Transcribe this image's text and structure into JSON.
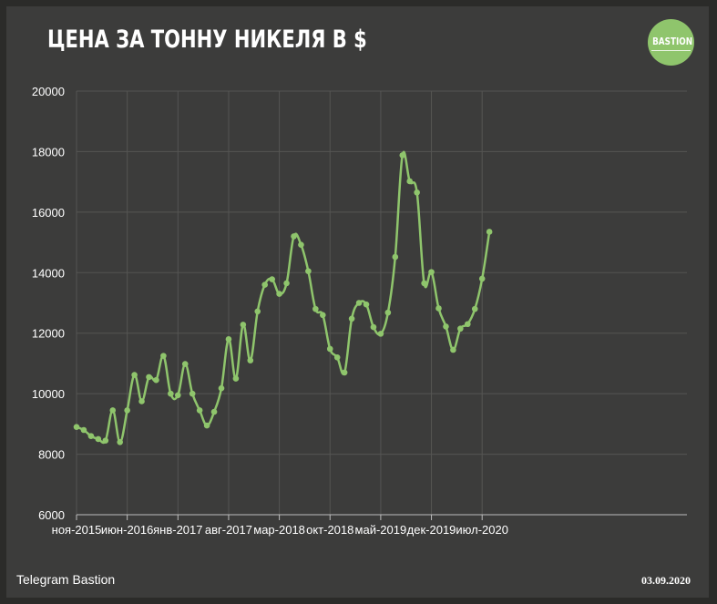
{
  "title": "ЦЕНА ЗА ТОННУ НИКЕЛЯ В $",
  "logo": {
    "text": "BASTION",
    "color": "#8fc56c"
  },
  "footer": {
    "source": "Telegram Bastion",
    "date": "03.09.2020"
  },
  "colors": {
    "background": "#3c3c3b",
    "line": "#8fc56c",
    "grid": "#555553",
    "text": "#ffffff"
  },
  "chart_data": {
    "type": "line",
    "title": "ЦЕНА ЗА ТОННУ НИКЕЛЯ В $",
    "xlabel": "",
    "ylabel": "",
    "ylim": [
      6000,
      20000
    ],
    "yticks": [
      6000,
      8000,
      10000,
      12000,
      14000,
      16000,
      18000,
      20000
    ],
    "xtick_labels": [
      "ноя-2015",
      "июн-2016",
      "янв-2017",
      "авг-2017",
      "мар-2018",
      "окт-2018",
      "май-2019",
      "дек-2019",
      "июл-2020"
    ],
    "grid": true,
    "legend": "none",
    "x": [
      "ноя-2015",
      "дек-2015",
      "янв-2016",
      "фев-2016",
      "мар-2016",
      "апр-2016",
      "май-2016",
      "июн-2016",
      "июл-2016",
      "авг-2016",
      "сен-2016",
      "окт-2016",
      "ноя-2016",
      "дек-2016",
      "янв-2017",
      "фев-2017",
      "мар-2017",
      "апр-2017",
      "май-2017",
      "июн-2017",
      "июл-2017",
      "авг-2017",
      "сен-2017",
      "окт-2017",
      "ноя-2017",
      "дек-2017",
      "янв-2018",
      "фев-2018",
      "мар-2018",
      "апр-2018",
      "май-2018",
      "июн-2018",
      "июл-2018",
      "авг-2018",
      "сен-2018",
      "окт-2018",
      "ноя-2018",
      "дек-2018",
      "янв-2019",
      "фев-2019",
      "мар-2019",
      "апр-2019",
      "май-2019",
      "июн-2019",
      "июл-2019",
      "авг-2019",
      "сен-2019",
      "окт-2019",
      "ноя-2019",
      "дек-2019",
      "янв-2020",
      "фев-2020",
      "мар-2020",
      "апр-2020",
      "май-2020",
      "июн-2020",
      "июл-2020",
      "авг-2020"
    ],
    "series": [
      {
        "name": "",
        "values": [
          8900,
          8800,
          8600,
          8500,
          8450,
          9450,
          8400,
          9450,
          10620,
          9750,
          10550,
          10450,
          11250,
          10000,
          9950,
          10980,
          10000,
          9450,
          8950,
          9400,
          10180,
          11800,
          10500,
          12280,
          11100,
          12720,
          13600,
          13780,
          13300,
          13650,
          15200,
          14920,
          14050,
          12800,
          12600,
          11480,
          11200,
          10700,
          12480,
          13000,
          12950,
          12200,
          11980,
          12680,
          14520,
          17880,
          17020,
          16650,
          13650,
          14020,
          12820,
          12220,
          11450,
          12150,
          12300,
          12800,
          13800,
          15350
        ]
      }
    ]
  }
}
